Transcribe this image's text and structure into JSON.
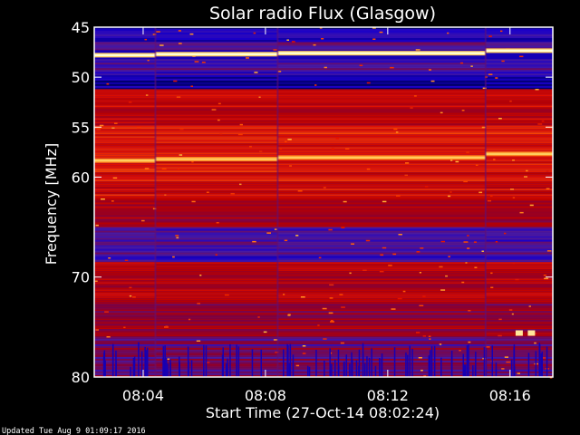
{
  "chart_data": {
    "type": "heatmap",
    "title": "Solar radio Flux (Glasgow)",
    "xlabel": "Start Time (27-Oct-14 08:02:24)",
    "ylabel": "Frequency [MHz]",
    "x_start": "08:02:24",
    "xlim_minutes": [
      0,
      15.0
    ],
    "x_ticks": [
      {
        "label": "08:04",
        "minute": 1.6
      },
      {
        "label": "08:08",
        "minute": 5.6
      },
      {
        "label": "08:12",
        "minute": 9.6
      },
      {
        "label": "08:16",
        "minute": 13.6
      }
    ],
    "ylim": [
      45,
      80
    ],
    "y_inverted": true,
    "y_ticks": [
      45,
      50,
      55,
      60,
      70,
      80
    ],
    "colormap": [
      "#000066",
      "#1a00c8",
      "#4a1aa0",
      "#8a0030",
      "#b80000",
      "#e01000",
      "#ff5000",
      "#ffc040",
      "#ffffd8"
    ],
    "segment_boundaries_minutes": [
      0,
      2.0,
      6.0,
      12.8,
      15.0
    ],
    "bright_lines_mhz": [
      {
        "freq": 47.7,
        "intensity": 1.0
      },
      {
        "freq": 58.2,
        "intensity": 0.9
      }
    ],
    "bands": [
      {
        "from": 45.0,
        "to": 46.5,
        "level": 0.12
      },
      {
        "from": 46.5,
        "to": 47.3,
        "level": 0.3
      },
      {
        "from": 48.2,
        "to": 49.8,
        "level": 0.22
      },
      {
        "from": 49.8,
        "to": 51.2,
        "level": 0.05
      },
      {
        "from": 51.2,
        "to": 55.0,
        "level": 0.55
      },
      {
        "from": 55.0,
        "to": 62.0,
        "level": 0.6
      },
      {
        "from": 62.0,
        "to": 65.0,
        "level": 0.45
      },
      {
        "from": 65.0,
        "to": 68.5,
        "level": 0.22
      },
      {
        "from": 68.5,
        "to": 72.5,
        "level": 0.5
      },
      {
        "from": 72.5,
        "to": 76.0,
        "level": 0.42
      },
      {
        "from": 76.0,
        "to": 80.0,
        "level": 0.32
      }
    ],
    "bursts": [
      {
        "minute": 13.9,
        "freq": 75.6,
        "intensity": 0.95
      },
      {
        "minute": 14.3,
        "freq": 75.6,
        "intensity": 0.95
      }
    ]
  },
  "footer": {
    "updated": "Updated Tue Aug  9 01:09:17 2016"
  }
}
